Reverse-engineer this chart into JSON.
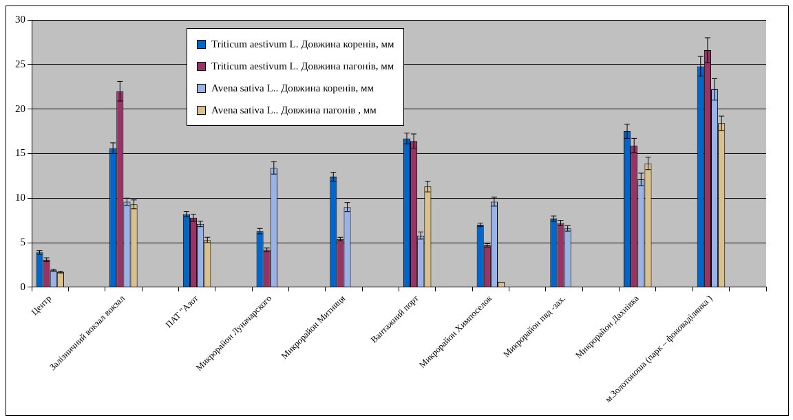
{
  "chart_data": {
    "type": "bar",
    "categories": [
      "Центр",
      null,
      "Залізничний вокзал вокзал",
      null,
      "ПАТ \"Азот",
      null,
      "Микрорайон Луначарского",
      null,
      "Микрорайон Митниця",
      null,
      "Вантажний порт",
      null,
      "Микрорайон Химпоселок",
      null,
      "Микрорайон пвд -зах.",
      null,
      "Микрорайон Дахнівка",
      null,
      "м.Золотоноша (парк – фоноваділянка )",
      null
    ],
    "series": [
      {
        "name": "Triticum aestivum L. Довжина коренів, мм",
        "color": "#0066cc",
        "values": [
          3.9,
          null,
          15.6,
          null,
          8.2,
          null,
          6.3,
          null,
          12.4,
          null,
          16.7,
          null,
          7.0,
          null,
          7.7,
          null,
          17.5,
          null,
          24.8,
          null
        ],
        "errors": [
          0.2,
          null,
          0.6,
          null,
          0.3,
          null,
          0.3,
          null,
          0.5,
          null,
          0.6,
          null,
          0.2,
          null,
          0.3,
          null,
          0.8,
          null,
          1.1,
          null
        ]
      },
      {
        "name": "Triticum aestivum L. Довжина пагонів, мм",
        "color": "#993366",
        "values": [
          3.1,
          null,
          22.0,
          null,
          7.8,
          null,
          4.2,
          null,
          5.4,
          null,
          16.4,
          null,
          4.7,
          null,
          7.2,
          null,
          15.9,
          null,
          26.6,
          null
        ],
        "errors": [
          0.2,
          null,
          1.1,
          null,
          0.4,
          null,
          0.2,
          null,
          0.2,
          null,
          0.8,
          null,
          0.2,
          null,
          0.3,
          null,
          0.8,
          null,
          1.4,
          null
        ]
      },
      {
        "name": "Avena sativa L.. Довжина коренів, мм",
        "color": "#99b3e6",
        "values": [
          1.9,
          null,
          9.6,
          null,
          7.1,
          null,
          13.4,
          null,
          9.0,
          null,
          5.8,
          null,
          9.6,
          null,
          6.6,
          null,
          12.1,
          null,
          22.2,
          null
        ],
        "errors": [
          0.1,
          null,
          0.4,
          null,
          0.3,
          null,
          0.7,
          null,
          0.5,
          null,
          0.4,
          null,
          0.5,
          null,
          0.3,
          null,
          0.7,
          null,
          1.2,
          null
        ]
      },
      {
        "name": "Avena sativa L.. Довжина пагонів , мм",
        "color": "#d9c08c",
        "values": [
          1.7,
          null,
          9.3,
          null,
          5.3,
          null,
          null,
          null,
          null,
          null,
          11.3,
          null,
          0.6,
          null,
          null,
          null,
          13.9,
          null,
          18.4,
          null
        ],
        "errors": [
          0.1,
          null,
          0.5,
          null,
          0.3,
          null,
          null,
          null,
          null,
          null,
          0.6,
          null,
          null,
          null,
          null,
          null,
          0.7,
          null,
          0.8,
          null
        ]
      }
    ],
    "ylim": [
      0,
      30
    ],
    "yticks": [
      0,
      5,
      10,
      15,
      20,
      25,
      30
    ],
    "grid": "y",
    "legend": "top"
  }
}
